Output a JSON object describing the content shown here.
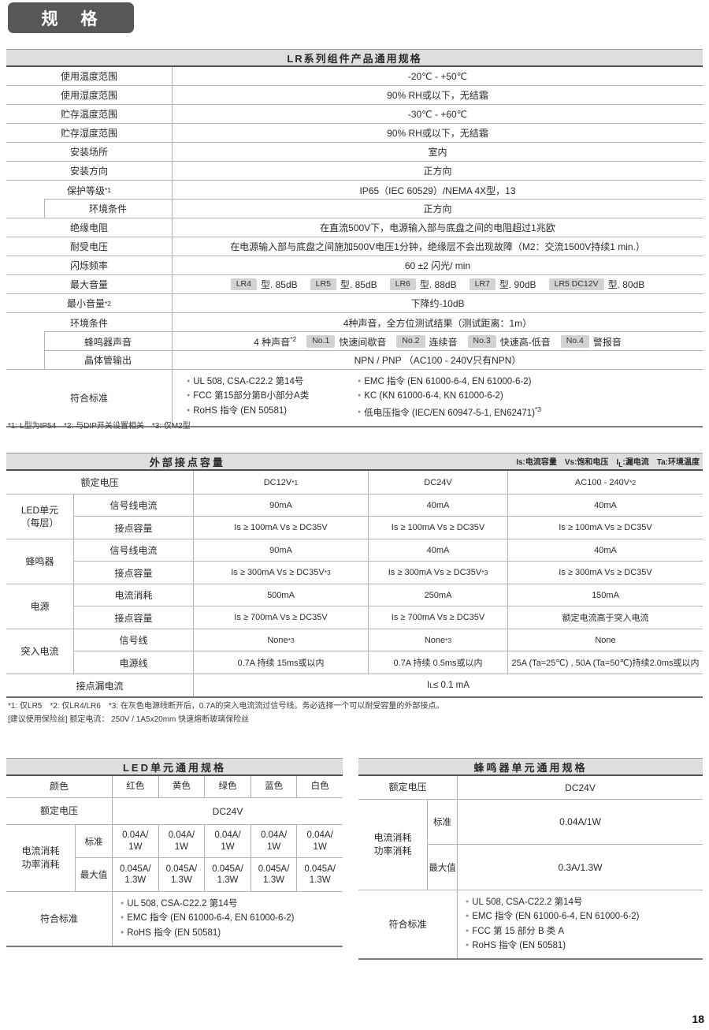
{
  "badge": "规　格",
  "table1": {
    "title": "LR系列组件产品通用规格",
    "rows": [
      {
        "label": "使用温度范围",
        "value": "-20℃ - +50℃"
      },
      {
        "label": "使用湿度范围",
        "value": "90% RH或以下，无结霜"
      },
      {
        "label": "贮存温度范围",
        "value": "-30℃ - +60℃"
      },
      {
        "label": "贮存湿度范围",
        "value": "90% RH或以下，无结霜"
      },
      {
        "label": "安装场所",
        "value": "室内"
      },
      {
        "label": "安装方向",
        "value": "正方向"
      },
      {
        "label": "保护等级^*1^",
        "value": "IP65（IEC 60529）/NEMA 4X型，13"
      },
      {
        "label": "环境条件",
        "value": "正方向"
      },
      {
        "label": "绝缘电阻",
        "value": "在直流500V下，电源输入部与底盘之间的电阻超过1兆欧"
      },
      {
        "label": "耐受电压",
        "value": "在电源输入部与底盘之间施加500V电压1分钟，绝缘层不会出现故障（M2：交流1500V持续1 min.）"
      },
      {
        "label": "闪烁频率",
        "value": "60 ±2 闪光/ min"
      },
      {
        "label": "最大音量",
        "badges": [
          {
            "badge": "LR4",
            "text": "型. 85dB"
          },
          {
            "badge": "LR5",
            "text": "型. 85dB"
          },
          {
            "badge": "LR6",
            "text": "型. 88dB"
          },
          {
            "badge": "LR7",
            "text": "型. 90dB"
          },
          {
            "badge": "LR5 DC12V",
            "text": "型. 80dB"
          }
        ]
      },
      {
        "label": "最小音量^*2^",
        "value": "下降约-10dB"
      },
      {
        "label": "环境条件",
        "value": "4种声音，全方位测试结果（测试距离：1m）"
      },
      {
        "label": "蜂鸣器声音",
        "prefix": "4 种声音^*2^",
        "badges": [
          {
            "badge": "No.1",
            "text": "快速间歇音"
          },
          {
            "badge": "No.2",
            "text": "连续音"
          },
          {
            "badge": "No.3",
            "text": "快速高-低音"
          },
          {
            "badge": "No.4",
            "text": "警报音"
          }
        ]
      },
      {
        "label": "晶体管输出",
        "value": "NPN / PNP （AC100 - 240V只有NPN）"
      },
      {
        "label": "符合标准",
        "bullets_left": [
          "UL 508, CSA-C22.2 第14号",
          "FCC 第15部分第B小部分A类",
          "RoHS 指令 (EN 50581)"
        ],
        "bullets_right": [
          "EMC 指令 (EN 61000-6-4, EN 61000-6-2)",
          "KC (KN 61000-6-4, KN 61000-6-2)",
          "低电压指令 (IEC/EN 60947-5-1, EN62471)^*3^"
        ]
      }
    ],
    "footnote": "*1: L型为IP54　*2: 与DIP开关设置相关　*3: 仅M2型"
  },
  "table2": {
    "title": "外部接点容量",
    "legend": "Is:电流容量　Vs:饱和电压　I~L~:漏电流　Ta:环境温度",
    "col_header_label": "额定电压",
    "columns": [
      "DC12V^*1^",
      "DC24V",
      "AC100 - 240V^*2^"
    ],
    "groups": [
      {
        "name": "LED单元\n（每层）",
        "rows": [
          {
            "label": "信号线电流",
            "cells": [
              "90mA",
              "40mA",
              "40mA"
            ]
          },
          {
            "label": "接点容量",
            "cells": [
              "Is ≥ 100mA Vs ≥ DC35V",
              "Is ≥ 100mA Vs ≥ DC35V",
              "Is ≥ 100mA Vs ≥ DC35V"
            ]
          }
        ]
      },
      {
        "name": "蜂鸣器",
        "rows": [
          {
            "label": "信号线电流",
            "cells": [
              "90mA",
              "40mA",
              "40mA"
            ]
          },
          {
            "label": "接点容量",
            "cells": [
              "Is ≥ 300mA Vs ≥ DC35V^*3^",
              "Is ≥ 300mA Vs ≥ DC35V^*3^",
              "Is ≥ 300mA Vs ≥ DC35V"
            ]
          }
        ]
      },
      {
        "name": "电源",
        "rows": [
          {
            "label": "电流消耗",
            "cells": [
              "500mA",
              "250mA",
              "150mA"
            ]
          },
          {
            "label": "接点容量",
            "cells": [
              "Is ≥ 700mA Vs ≥ DC35V",
              "Is ≥ 700mA Vs ≥ DC35V",
              "额定电流高于突入电流"
            ]
          }
        ]
      },
      {
        "name": "突入电流",
        "rows": [
          {
            "label": "信号线",
            "cells": [
              "None^*3^",
              "None^*3^",
              "None"
            ]
          },
          {
            "label": "电源线",
            "cells": [
              "0.7A 持续 15ms或以内",
              "0.7A 持续 0.5ms或以内",
              "25A (Ta=25℃) , 50A (Ta=50℃)持续2.0ms或以内"
            ]
          }
        ]
      }
    ],
    "leakage_label": "接点漏电流",
    "leakage_value": "I~L~ ≤ 0.1 mA",
    "footnote1": "*1: 仅LR5　*2: 仅LR4/LR6　*3: 在灰色电源线断开后，0.7A的突入电流流过信号线。务必选择一个可以耐受容量的外部接点。",
    "footnote2": "[建议使用保险丝] 额定电流： 250V / 1A5x20mm 快速熔断玻璃保险丝"
  },
  "led": {
    "title": "LED单元通用规格",
    "color_label": "颜色",
    "colors": [
      "红色",
      "黄色",
      "绿色",
      "蓝色",
      "白色"
    ],
    "voltage_label": "额定电压",
    "voltage_value": "DC24V",
    "consumption_label": "电流消耗\n功率消耗",
    "std_label": "标准",
    "std_values": [
      "0.04A/\n1W",
      "0.04A/\n1W",
      "0.04A/\n1W",
      "0.04A/\n1W",
      "0.04A/\n1W"
    ],
    "max_label": "最大值",
    "max_values": [
      "0.045A/\n1.3W",
      "0.045A/\n1.3W",
      "0.045A/\n1.3W",
      "0.045A/\n1.3W",
      "0.045A/\n1.3W"
    ],
    "standards_label": "符合标准",
    "standards": [
      "UL 508, CSA-C22.2 第14号",
      "EMC 指令 (EN 61000-6-4, EN 61000-6-2)",
      "RoHS 指令 (EN 50581)"
    ]
  },
  "buzzer": {
    "title": "蜂鸣器单元通用规格",
    "voltage_label": "额定电压",
    "voltage_value": "DC24V",
    "consumption_label": "电流消耗\n功率消耗",
    "std_label": "标准",
    "std_value": "0.04A/1W",
    "max_label": "最大值",
    "max_value": "0.3A/1.3W",
    "standards_label": "符合标准",
    "standards": [
      "UL 508, CSA-C22.2 第14号",
      "EMC 指令 (EN 61000-6-4, EN 61000-6-2)",
      "FCC 第 15 部分 B 类 A",
      "RoHS 指令 (EN 50581)"
    ]
  },
  "page_number": "18"
}
